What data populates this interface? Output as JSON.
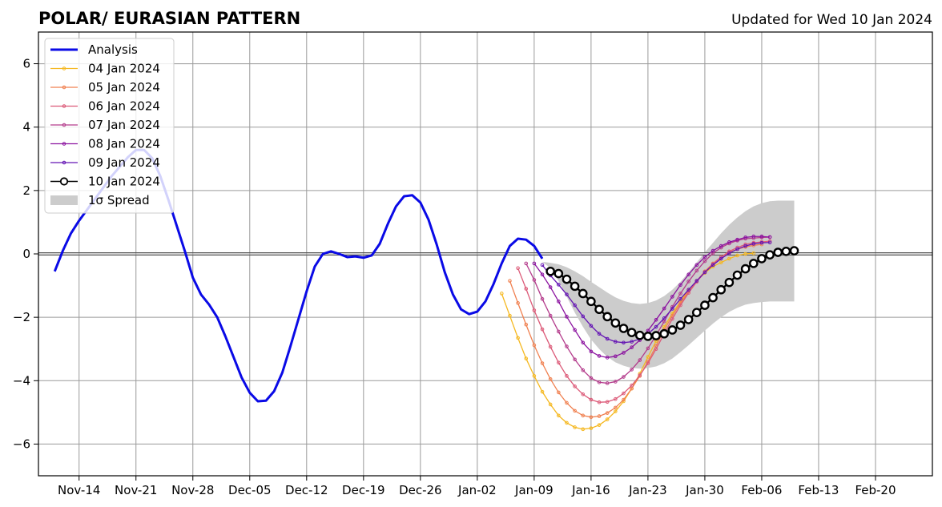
{
  "chart_data": {
    "type": "line",
    "title": "POLAR/ EURASIAN  PATTERN",
    "updated": "Updated for Wed 10 Jan 2024",
    "xlabel": "",
    "ylabel": "",
    "ylim": [
      -7,
      7
    ],
    "y_ticks": [
      -6,
      -4,
      -2,
      0,
      2,
      4,
      6
    ],
    "y_tick_labels": [
      "−6",
      "−4",
      "−2",
      "0",
      "2",
      "4",
      "6"
    ],
    "x_range": [
      "2023-11-09",
      "2024-02-27"
    ],
    "x_ticks": [
      "2023-11-14",
      "2023-11-21",
      "2023-11-28",
      "2023-12-05",
      "2023-12-12",
      "2023-12-19",
      "2023-12-26",
      "2024-01-02",
      "2024-01-09",
      "2024-01-16",
      "2024-01-23",
      "2024-01-30",
      "2024-02-06",
      "2024-02-13",
      "2024-02-20"
    ],
    "x_tick_labels": [
      "Nov-14",
      "Nov-21",
      "Nov-28",
      "Dec-05",
      "Dec-12",
      "Dec-19",
      "Dec-26",
      "Jan-02",
      "Jan-09",
      "Jan-16",
      "Jan-23",
      "Jan-30",
      "Feb-06",
      "Feb-13",
      "Feb-20"
    ],
    "grid": true,
    "legend_position": "top-left",
    "analysis": {
      "name": "Analysis",
      "color": "#0a0ae6",
      "start_date": "2023-11-11",
      "values": [
        -0.55,
        0.1,
        0.65,
        1.05,
        1.4,
        1.75,
        2.1,
        2.45,
        2.75,
        3.05,
        3.28,
        3.28,
        3.02,
        2.45,
        1.7,
        0.9,
        0.1,
        -0.75,
        -1.28,
        -1.6,
        -2.0,
        -2.6,
        -3.25,
        -3.9,
        -4.38,
        -4.65,
        -4.63,
        -4.33,
        -3.75,
        -2.92,
        -2.05,
        -1.18,
        -0.4,
        0.0,
        0.08,
        0.0,
        -0.1,
        -0.08,
        -0.12,
        -0.05,
        0.32,
        0.95,
        1.5,
        1.82,
        1.85,
        1.62,
        1.08,
        0.3,
        -0.58,
        -1.28,
        -1.75,
        -1.9,
        -1.82,
        -1.5,
        -0.95,
        -0.3,
        0.25,
        0.48,
        0.45,
        0.25,
        -0.15
      ]
    },
    "forecasts": [
      {
        "name": "04 Jan 2024",
        "color": "#f5b820",
        "start_date": "2024-01-05",
        "values": [
          -1.25,
          -1.95,
          -2.65,
          -3.3,
          -3.85,
          -4.35,
          -4.75,
          -5.1,
          -5.33,
          -5.47,
          -5.53,
          -5.5,
          -5.4,
          -5.22,
          -4.97,
          -4.65,
          -4.25,
          -3.78,
          -3.25,
          -2.75,
          -2.3,
          -1.88,
          -1.5,
          -1.15,
          -0.85,
          -0.6,
          -0.4,
          -0.27,
          -0.15,
          -0.05,
          0.0,
          0.02
        ]
      },
      {
        "name": "05 Jan 2024",
        "color": "#f08050",
        "start_date": "2024-01-06",
        "values": [
          -0.85,
          -1.55,
          -2.23,
          -2.88,
          -3.45,
          -3.95,
          -4.37,
          -4.7,
          -4.95,
          -5.1,
          -5.15,
          -5.12,
          -5.02,
          -4.85,
          -4.6,
          -4.25,
          -3.85,
          -3.4,
          -2.9,
          -2.4,
          -1.95,
          -1.55,
          -1.18,
          -0.85,
          -0.55,
          -0.3,
          -0.1,
          0.05,
          0.15,
          0.22,
          0.27,
          0.3
        ]
      },
      {
        "name": "06 Jan 2024",
        "color": "#dc5a78",
        "start_date": "2024-01-07",
        "values": [
          -0.45,
          -1.1,
          -1.78,
          -2.38,
          -2.93,
          -3.43,
          -3.85,
          -4.18,
          -4.43,
          -4.6,
          -4.68,
          -4.67,
          -4.58,
          -4.4,
          -4.15,
          -3.83,
          -3.45,
          -3.0,
          -2.52,
          -2.05,
          -1.62,
          -1.23,
          -0.88,
          -0.58,
          -0.32,
          -0.1,
          0.08,
          0.2,
          0.3,
          0.35,
          0.38,
          0.4
        ]
      },
      {
        "name": "07 Jan 2024",
        "color": "#b43c8c",
        "start_date": "2024-01-08",
        "values": [
          -0.3,
          -0.82,
          -1.42,
          -1.95,
          -2.45,
          -2.92,
          -3.33,
          -3.67,
          -3.92,
          -4.05,
          -4.08,
          -4.03,
          -3.88,
          -3.65,
          -3.35,
          -2.98,
          -2.57,
          -2.13,
          -1.67,
          -1.25,
          -0.87,
          -0.53,
          -0.23,
          0.02,
          0.2,
          0.33,
          0.42,
          0.48,
          0.5,
          0.52,
          0.53
        ]
      },
      {
        "name": "08 Jan 2024",
        "color": "#8c14a0",
        "start_date": "2024-01-09",
        "values": [
          -0.3,
          -0.65,
          -1.05,
          -1.5,
          -1.98,
          -2.4,
          -2.8,
          -3.08,
          -3.22,
          -3.27,
          -3.23,
          -3.12,
          -2.95,
          -2.72,
          -2.42,
          -2.08,
          -1.72,
          -1.35,
          -0.98,
          -0.65,
          -0.35,
          -0.1,
          0.1,
          0.25,
          0.37,
          0.45,
          0.52,
          0.55,
          0.55,
          0.53
        ]
      },
      {
        "name": "09 Jan 2024",
        "color": "#6414b4",
        "start_date": "2024-01-10",
        "values": [
          -0.35,
          -0.68,
          -0.97,
          -1.28,
          -1.62,
          -1.97,
          -2.27,
          -2.52,
          -2.68,
          -2.77,
          -2.8,
          -2.77,
          -2.68,
          -2.52,
          -2.3,
          -2.03,
          -1.73,
          -1.42,
          -1.13,
          -0.85,
          -0.58,
          -0.35,
          -0.15,
          0.02,
          0.15,
          0.25,
          0.32,
          0.35,
          0.36
        ]
      },
      {
        "name": "10 Jan 2024",
        "color": "#000000",
        "start_date": "2024-01-11",
        "values": [
          -0.55,
          -0.62,
          -0.8,
          -1.02,
          -1.25,
          -1.5,
          -1.75,
          -1.98,
          -2.18,
          -2.35,
          -2.48,
          -2.57,
          -2.6,
          -2.58,
          -2.52,
          -2.4,
          -2.25,
          -2.07,
          -1.85,
          -1.62,
          -1.38,
          -1.13,
          -0.9,
          -0.67,
          -0.47,
          -0.3,
          -0.15,
          -0.03,
          0.05,
          0.08,
          0.1
        ]
      }
    ],
    "spread": {
      "name": "1σ Spread",
      "color": "#cccccc",
      "start_date": "2024-01-10",
      "upper": [
        -0.25,
        -0.28,
        -0.33,
        -0.42,
        -0.55,
        -0.7,
        -0.88,
        -1.05,
        -1.22,
        -1.37,
        -1.48,
        -1.55,
        -1.58,
        -1.55,
        -1.47,
        -1.33,
        -1.13,
        -0.88,
        -0.58,
        -0.27,
        0.05,
        0.35,
        0.65,
        0.92,
        1.15,
        1.35,
        1.5,
        1.6,
        1.66,
        1.68,
        1.68,
        1.68
      ],
      "lower": [
        -0.25,
        -0.45,
        -0.85,
        -1.35,
        -1.85,
        -2.3,
        -2.7,
        -3.0,
        -3.25,
        -3.42,
        -3.53,
        -3.6,
        -3.62,
        -3.6,
        -3.55,
        -3.45,
        -3.3,
        -3.1,
        -2.88,
        -2.65,
        -2.42,
        -2.2,
        -2.0,
        -1.83,
        -1.7,
        -1.6,
        -1.55,
        -1.52,
        -1.5,
        -1.5,
        -1.5,
        -1.5
      ]
    }
  }
}
